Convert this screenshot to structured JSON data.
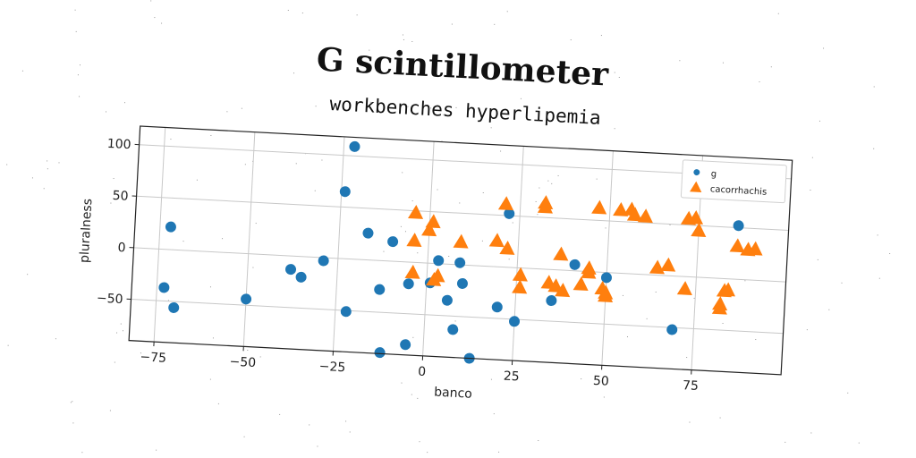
{
  "title": "G scintillometer",
  "subtitle": "workbenches hyperlipemia",
  "colors": {
    "g": "#1f77b4",
    "cacorrhachis": "#ff7f0e"
  },
  "chart_data": {
    "type": "scatter",
    "title": "workbenches hyperlipemia",
    "xlabel": "banco",
    "ylabel": "pluralness",
    "xlim": [
      -82,
      100
    ],
    "ylim": [
      -90,
      118
    ],
    "xticks": [
      -75,
      -50,
      -25,
      0,
      25,
      50,
      75
    ],
    "xtick_labels": [
      "−75",
      "−50",
      "−25",
      "0",
      "25",
      "50",
      "75"
    ],
    "yticks": [
      100,
      50,
      0,
      -50
    ],
    "ytick_labels": [
      "100",
      "50",
      "0",
      "−50"
    ],
    "grid": true,
    "legend_position": "upper right",
    "series": [
      {
        "name": "g",
        "marker": "circle",
        "points": [
          [
            -72,
            22
          ],
          [
            -73,
            -37
          ],
          [
            -70,
            -56
          ],
          [
            -50,
            -44
          ],
          [
            -38,
            -13
          ],
          [
            -35,
            -20
          ],
          [
            -29,
            -3
          ],
          [
            -24,
            65
          ],
          [
            -22,
            109
          ],
          [
            -22,
            -51
          ],
          [
            -17,
            26
          ],
          [
            -13,
            -28
          ],
          [
            -10,
            19
          ],
          [
            -12,
            -89
          ],
          [
            -5,
            -21
          ],
          [
            -5,
            -80
          ],
          [
            1,
            -19
          ],
          [
            3,
            3
          ],
          [
            6,
            -35
          ],
          [
            8,
            -63
          ],
          [
            9,
            2
          ],
          [
            10,
            -18
          ],
          [
            13,
            -90
          ],
          [
            20,
            -39
          ],
          [
            22,
            52
          ],
          [
            25,
            -52
          ],
          [
            35,
            -30
          ],
          [
            41,
            6
          ],
          [
            50,
            -5
          ],
          [
            69,
            -52
          ],
          [
            86,
            52
          ]
        ]
      },
      {
        "name": "cacorrhachis",
        "marker": "triangle",
        "points": [
          [
            -4,
            48
          ],
          [
            -4,
            21
          ],
          [
            -4,
            -10
          ],
          [
            0,
            32
          ],
          [
            1,
            40
          ],
          [
            2,
            -16
          ],
          [
            3,
            -12
          ],
          [
            9,
            22
          ],
          [
            19,
            25
          ],
          [
            21,
            61
          ],
          [
            22,
            18
          ],
          [
            26,
            -7
          ],
          [
            26,
            -19
          ],
          [
            32,
            60
          ],
          [
            32,
            64
          ],
          [
            34,
            -13
          ],
          [
            36,
            -16
          ],
          [
            37,
            15
          ],
          [
            38,
            -20
          ],
          [
            43,
            -13
          ],
          [
            45,
            3
          ],
          [
            45,
            -1
          ],
          [
            47,
            62
          ],
          [
            49,
            -16
          ],
          [
            50,
            -20
          ],
          [
            50,
            -23
          ],
          [
            53,
            61
          ],
          [
            56,
            62
          ],
          [
            57,
            57
          ],
          [
            60,
            56
          ],
          [
            64,
            7
          ],
          [
            67,
            10
          ],
          [
            72,
            56
          ],
          [
            74,
            57
          ],
          [
            75,
            45
          ],
          [
            72,
            -12
          ],
          [
            82,
            -25
          ],
          [
            82,
            -29
          ],
          [
            83,
            -12
          ],
          [
            84,
            -11
          ],
          [
            86,
            32
          ],
          [
            89,
            29
          ],
          [
            91,
            30
          ]
        ]
      }
    ]
  }
}
